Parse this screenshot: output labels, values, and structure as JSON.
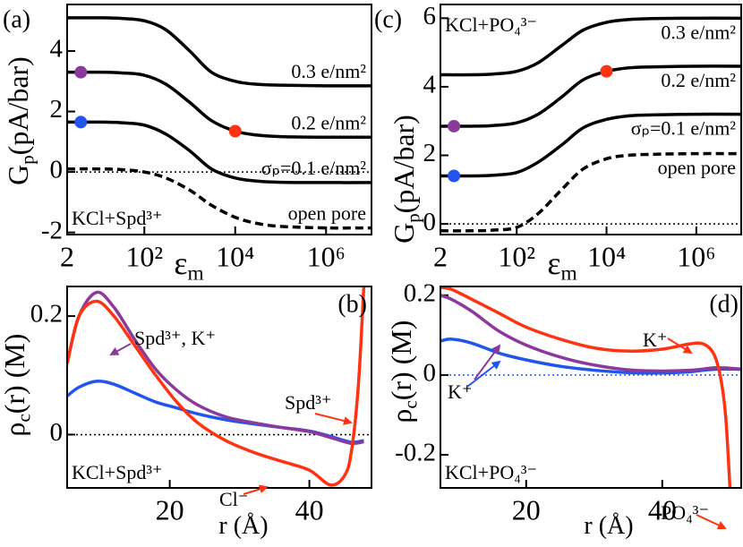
{
  "chart_data": [
    {
      "type": "line",
      "label": "(a)",
      "xscale": "log",
      "xlim": [
        2,
        10000000
      ],
      "xticks": [
        2,
        {
          "value": 100,
          "label": "10²"
        },
        {
          "value": 10000,
          "label": "10⁴"
        },
        {
          "value": 1000000,
          "label": "10⁶"
        }
      ],
      "ylim": [
        -2.07,
        5.54
      ],
      "yticks": [
        -2,
        0,
        2,
        4
      ],
      "xlabel": [
        {
          "text": "ε"
        },
        {
          "text": "m",
          "sub": true
        }
      ],
      "ylabel": [
        {
          "text": "G"
        },
        {
          "text": "p",
          "sub": true
        },
        {
          "text": "(pA/bar)"
        }
      ],
      "x": [
        2,
        10,
        30,
        100,
        300,
        1000,
        3000,
        10000,
        30000,
        100000,
        1000000,
        10000000
      ],
      "series": [
        {
          "name": "0.3 e/nm²",
          "color": "#000000",
          "style": "solid",
          "values": [
            5.1,
            5.1,
            5.08,
            5.0,
            4.7,
            4.0,
            3.3,
            3.0,
            2.9,
            2.87,
            2.85,
            2.85
          ]
        },
        {
          "name": "0.2 e/nm²",
          "color": "#000000",
          "style": "solid",
          "values": [
            3.3,
            3.3,
            3.28,
            3.2,
            2.9,
            2.3,
            1.7,
            1.35,
            1.22,
            1.17,
            1.15,
            1.15
          ]
        },
        {
          "name": "σₚ=0.1 e/nm²",
          "color": "#000000",
          "style": "solid",
          "values": [
            1.65,
            1.65,
            1.63,
            1.55,
            1.25,
            0.7,
            0.1,
            -0.2,
            -0.3,
            -0.34,
            -0.35,
            -0.35
          ]
        },
        {
          "name": "open pore",
          "color": "#000000",
          "style": "dashed",
          "values": [
            0.1,
            0.1,
            0.08,
            0.0,
            -0.2,
            -0.6,
            -1.1,
            -1.5,
            -1.7,
            -1.8,
            -1.85,
            -1.85
          ]
        }
      ],
      "hline": {
        "value": 0,
        "color": "#000000"
      },
      "markers": [
        {
          "x": 4,
          "y": 3.3,
          "color": "#8b3a9c"
        },
        {
          "x": 4,
          "y": 1.65,
          "color": "#2255ee"
        },
        {
          "x": 10000,
          "y": 1.35,
          "color": "#ff3311"
        }
      ],
      "annotations": [
        {
          "text": "KCl+Spd³⁺",
          "color": "#000000"
        }
      ]
    },
    {
      "type": "line",
      "label": "(b)",
      "xscale": "linear",
      "xlim": [
        5.3,
        48.9
      ],
      "xticks": [
        20,
        40
      ],
      "ylim": [
        -0.09,
        0.25
      ],
      "yticks": [
        0,
        0.2
      ],
      "xlabel": [
        {
          "text": "r (Å)"
        }
      ],
      "ylabel": [
        {
          "text": "ρ"
        },
        {
          "text": "c",
          "sub": true
        },
        {
          "text": "(r) (M)"
        }
      ],
      "x": [
        5.3,
        7,
        9.5,
        12,
        15,
        18,
        21,
        24,
        28,
        32,
        36,
        40,
        43,
        45,
        46,
        47,
        47.8
      ],
      "series": [
        {
          "color": "#2255ee",
          "style": "solid",
          "values": [
            0.065,
            0.08,
            0.09,
            0.085,
            0.07,
            0.055,
            0.045,
            0.035,
            0.025,
            0.018,
            0.012,
            0.006,
            -0.003,
            -0.01,
            -0.013,
            -0.012,
            -0.01
          ]
        },
        {
          "color": "#8b3a9c",
          "style": "solid",
          "values": [
            0.12,
            0.2,
            0.24,
            0.215,
            0.16,
            0.11,
            0.075,
            0.05,
            0.03,
            0.02,
            0.012,
            0.005,
            -0.005,
            -0.012,
            -0.015,
            -0.014,
            -0.012
          ]
        },
        {
          "color": "#ff3311",
          "style": "solid",
          "values": [
            0.12,
            0.2,
            0.225,
            0.2,
            0.15,
            0.1,
            0.055,
            0.02,
            -0.01,
            -0.03,
            -0.045,
            -0.06,
            -0.085,
            -0.07,
            -0.03,
            0.08,
            0.25
          ]
        }
      ],
      "hline": {
        "value": 0,
        "color": "#000000"
      },
      "annotations": [
        {
          "text": "Spd³⁺, K⁺",
          "color": "#8b3a9c"
        },
        {
          "text": "Spd³⁺",
          "color": "#ff3311"
        },
        {
          "text": "Cl⁻",
          "color": "#ff3311"
        },
        {
          "text": "KCl+Spd³⁺",
          "color": "#000000"
        }
      ]
    },
    {
      "type": "line",
      "label": "(c)",
      "xscale": "log",
      "xlim": [
        2,
        10000000
      ],
      "xticks": [
        2,
        {
          "value": 100,
          "label": "10²"
        },
        {
          "value": 10000,
          "label": "10⁴"
        },
        {
          "value": 1000000,
          "label": "10⁶"
        }
      ],
      "ylim": [
        -0.31,
        6.4
      ],
      "yticks": [
        0,
        2,
        4,
        6
      ],
      "xlabel": [
        {
          "text": "ε"
        },
        {
          "text": "m",
          "sub": true
        }
      ],
      "ylabel": [
        {
          "text": "G"
        },
        {
          "text": "p",
          "sub": true
        },
        {
          "text": "(pA/bar)"
        }
      ],
      "x": [
        2,
        10,
        30,
        100,
        300,
        1000,
        3000,
        10000,
        30000,
        100000,
        1000000,
        10000000
      ],
      "series": [
        {
          "name": "0.3 e/nm²",
          "color": "#000000",
          "style": "solid",
          "values": [
            4.35,
            4.35,
            4.37,
            4.45,
            4.7,
            5.2,
            5.65,
            5.88,
            5.96,
            5.99,
            6.0,
            6.0
          ]
        },
        {
          "name": "0.2 e/nm²",
          "color": "#000000",
          "style": "solid",
          "values": [
            2.85,
            2.85,
            2.87,
            2.95,
            3.2,
            3.7,
            4.2,
            4.45,
            4.55,
            4.58,
            4.6,
            4.6
          ]
        },
        {
          "name": "σₚ=0.1 e/nm²",
          "color": "#000000",
          "style": "solid",
          "values": [
            1.4,
            1.4,
            1.42,
            1.5,
            1.8,
            2.3,
            2.8,
            3.05,
            3.15,
            3.18,
            3.2,
            3.2
          ]
        },
        {
          "name": "open pore",
          "color": "#000000",
          "style": "dashed",
          "values": [
            -0.2,
            -0.2,
            -0.18,
            -0.1,
            0.3,
            1.0,
            1.6,
            1.9,
            2.0,
            2.03,
            2.05,
            2.05
          ]
        }
      ],
      "hline": {
        "value": 0,
        "color": "#000000"
      },
      "markers": [
        {
          "x": 4,
          "y": 2.85,
          "color": "#8b3a9c"
        },
        {
          "x": 4,
          "y": 1.4,
          "color": "#2255ee"
        },
        {
          "x": 10000,
          "y": 4.45,
          "color": "#ff3311"
        }
      ],
      "annotations": [
        {
          "text": "KCl+PO₄³⁻",
          "color": "#000000"
        }
      ]
    },
    {
      "type": "line",
      "label": "(d)",
      "xscale": "linear",
      "xlim": [
        7.4,
        51.6
      ],
      "xticks": [
        20,
        40
      ],
      "ylim": [
        -0.283,
        0.222
      ],
      "yticks": [
        -0.2,
        0,
        0.2
      ],
      "xlabel": [
        {
          "text": "r (Å)"
        }
      ],
      "ylabel": [
        {
          "text": "ρ"
        },
        {
          "text": "c",
          "sub": true
        },
        {
          "text": "(r) (M)"
        }
      ],
      "x": [
        7.4,
        9,
        12,
        16,
        20,
        25,
        30,
        35,
        40,
        44,
        46,
        47.5,
        48.5,
        49.3,
        50,
        51.6
      ],
      "series": [
        {
          "color": "#2255ee",
          "style": "solid",
          "values": [
            0.085,
            0.09,
            0.08,
            0.055,
            0.038,
            0.022,
            0.012,
            0.006,
            0.005,
            0.008,
            0.012,
            0.014,
            0.015,
            0.015,
            0.015,
            0.014
          ]
        },
        {
          "color": "#8b3a9c",
          "style": "solid",
          "values": [
            0.2,
            0.19,
            0.16,
            0.11,
            0.075,
            0.045,
            0.025,
            0.013,
            0.01,
            0.012,
            0.015,
            0.018,
            0.018,
            0.018,
            0.017,
            0.015
          ]
        },
        {
          "color": "#ff3311",
          "style": "solid",
          "values": [
            0.22,
            0.215,
            0.19,
            0.155,
            0.12,
            0.09,
            0.068,
            0.06,
            0.065,
            0.078,
            0.078,
            0.055,
            0.0,
            -0.1,
            -0.3,
            null
          ]
        }
      ],
      "hline": {
        "value": 0,
        "color": "#2255ee"
      },
      "annotations": [
        {
          "text": "K⁺",
          "color": "#ff3311"
        },
        {
          "text": "K⁺",
          "color": "#2255ee"
        },
        {
          "text": "KCl+PO₄³⁻",
          "color": "#000000"
        },
        {
          "text": "PO₄³⁻",
          "color": "#ff3311"
        }
      ]
    }
  ]
}
